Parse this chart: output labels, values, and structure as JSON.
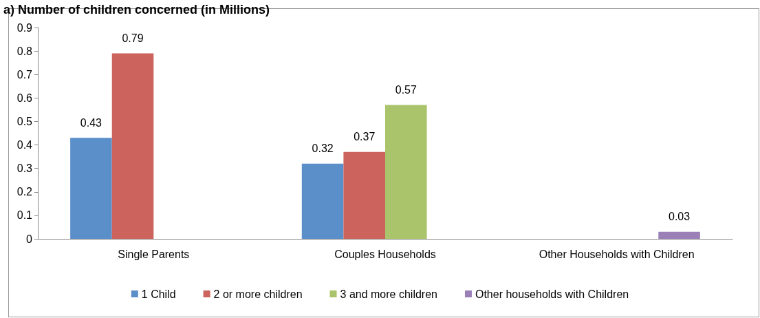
{
  "chart_data": {
    "type": "bar",
    "title": "a) Number of children concerned (in Millions)",
    "categories": [
      "Single Parents",
      "Couples Households",
      "Other Households with Children"
    ],
    "series": [
      {
        "name": "1 Child",
        "color": "#5b8fc9",
        "values": [
          0.43,
          0.32,
          null
        ]
      },
      {
        "name": "2 or more children",
        "color": "#cd635d",
        "values": [
          0.79,
          0.37,
          null
        ]
      },
      {
        "name": "3 and more children",
        "color": "#a9c46a",
        "values": [
          null,
          0.57,
          null
        ]
      },
      {
        "name": "Other households with Children",
        "color": "#9b80b8",
        "values": [
          null,
          null,
          0.03
        ]
      }
    ],
    "ylim": [
      0,
      0.9
    ],
    "yticks": [
      0,
      0.1,
      0.2,
      0.3,
      0.4,
      0.5,
      0.6,
      0.7,
      0.8,
      0.9
    ],
    "grid": false,
    "legend": "bottom",
    "data_labels": true
  }
}
